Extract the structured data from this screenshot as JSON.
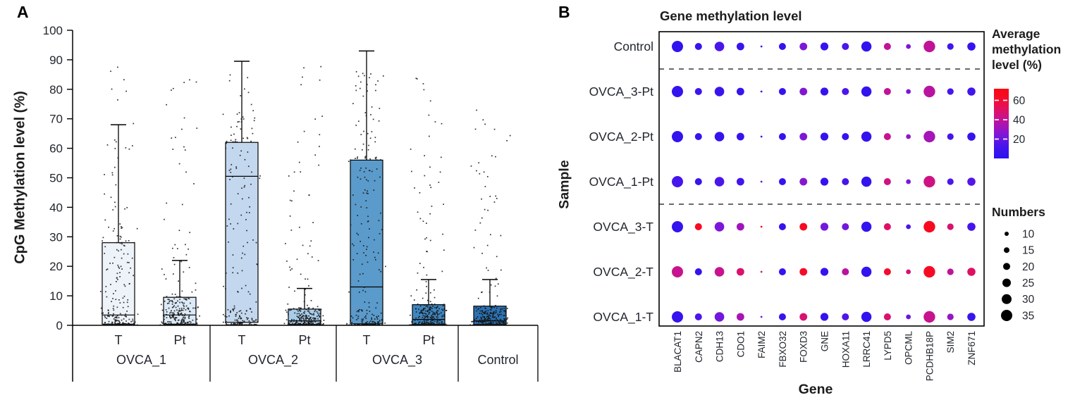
{
  "chart_data": [
    {
      "type": "box",
      "panel_tag": "A",
      "ylabel": "CpG Methylation level (%)",
      "ylim": [
        0,
        100
      ],
      "ytick_step": 10,
      "grid": false,
      "groups": [
        {
          "label": "OVCA_1",
          "boxes": [
            {
              "sub": "T",
              "q1": 0.4,
              "median": 3.5,
              "q3": 28,
              "whisker_high": 68,
              "points_max": 89,
              "fill": "#eef3fa",
              "n_points": 240
            },
            {
              "sub": "Pt",
              "q1": 0.4,
              "median": 3.5,
              "q3": 9.5,
              "whisker_high": 22,
              "points_max": 87,
              "fill": "#dce9f6",
              "n_points": 300
            }
          ]
        },
        {
          "label": "OVCA_2",
          "boxes": [
            {
              "sub": "T",
              "q1": 1.0,
              "median": 50.5,
              "q3": 62,
              "whisker_high": 89.5,
              "points_max": 88,
              "fill": "#c3d8ee",
              "n_points": 240
            },
            {
              "sub": "Pt",
              "q1": 0.3,
              "median": 1.5,
              "q3": 5.5,
              "whisker_high": 12.5,
              "points_max": 88,
              "fill": "#a9cde9",
              "n_points": 300
            }
          ]
        },
        {
          "label": "OVCA_3",
          "boxes": [
            {
              "sub": "T",
              "q1": 0.5,
              "median": 13,
              "q3": 56,
              "whisker_high": 93,
              "points_max": 87,
              "fill": "#5b9bcb",
              "n_points": 240
            },
            {
              "sub": "Pt",
              "q1": 0.3,
              "median": 2,
              "q3": 7,
              "whisker_high": 15.5,
              "points_max": 84,
              "fill": "#3f87c1",
              "n_points": 300
            }
          ]
        },
        {
          "label": "Control",
          "boxes": [
            {
              "sub": "",
              "q1": 0.3,
              "median": 1.5,
              "q3": 6.5,
              "whisker_high": 15.5,
              "points_max": 82,
              "fill": "#2d73b4",
              "n_points": 300
            }
          ]
        }
      ]
    },
    {
      "type": "bubble",
      "panel_tag": "B",
      "title": "Gene methylation level",
      "xlabel": "Gene",
      "ylabel": "Sample",
      "samples": [
        "Control",
        "OVCA_3-Pt",
        "OVCA_2-Pt",
        "OVCA_1-Pt",
        "OVCA_3-T",
        "OVCA_2-T",
        "OVCA_1-T"
      ],
      "genes": [
        "BLACAT1",
        "CAPN2",
        "CDH13",
        "CDO1",
        "FAIM2",
        "FBXO32",
        "FOXD3",
        "GNE",
        "HOXA11",
        "LRRC41",
        "LYPD5",
        "OPCML",
        "PCDHB18P",
        "SIM2",
        "ZNF671"
      ],
      "numbers_per_gene": [
        35,
        20,
        29,
        22,
        2,
        20,
        22,
        23,
        20,
        31,
        20,
        12,
        36,
        18,
        24
      ],
      "avg_methylation_levels": [
        [
          3,
          5,
          13,
          6,
          8,
          5,
          24,
          5,
          14,
          3,
          40,
          24,
          40,
          10,
          5
        ],
        [
          4,
          8,
          7,
          6,
          8,
          5,
          25,
          5,
          14,
          4,
          40,
          24,
          38,
          12,
          10
        ],
        [
          4,
          5,
          5,
          5,
          8,
          5,
          24,
          5,
          5,
          4,
          42,
          28,
          33,
          12,
          5
        ],
        [
          12,
          6,
          14,
          10,
          18,
          5,
          26,
          5,
          12,
          4,
          44,
          24,
          44,
          14,
          16
        ],
        [
          4,
          64,
          24,
          32,
          62,
          5,
          64,
          22,
          22,
          4,
          50,
          14,
          66,
          48,
          12
        ],
        [
          42,
          5,
          42,
          48,
          45,
          5,
          63,
          5,
          38,
          4,
          62,
          46,
          64,
          40,
          50
        ],
        [
          5,
          14,
          22,
          34,
          20,
          6,
          48,
          5,
          15,
          4,
          48,
          20,
          42,
          30,
          6
        ]
      ],
      "group_dividers_after_rows": [
        0,
        3
      ],
      "color_legend": {
        "title_lines": [
          "Average",
          "methylation",
          "level (%)"
        ],
        "tick_values": [
          60,
          40,
          20
        ],
        "scale_top": 72,
        "scale_bottom": 0
      },
      "size_legend": {
        "title": "Numbers",
        "values": [
          10,
          15,
          20,
          25,
          30,
          35
        ]
      },
      "color_stops": [
        [
          0,
          "#2a12f0"
        ],
        [
          14,
          "#4b16ea"
        ],
        [
          24,
          "#7d17d8"
        ],
        [
          34,
          "#a915b4"
        ],
        [
          44,
          "#cf1283"
        ],
        [
          54,
          "#e80f52"
        ],
        [
          64,
          "#f60b24"
        ],
        [
          72,
          "#fa0713"
        ]
      ]
    }
  ]
}
